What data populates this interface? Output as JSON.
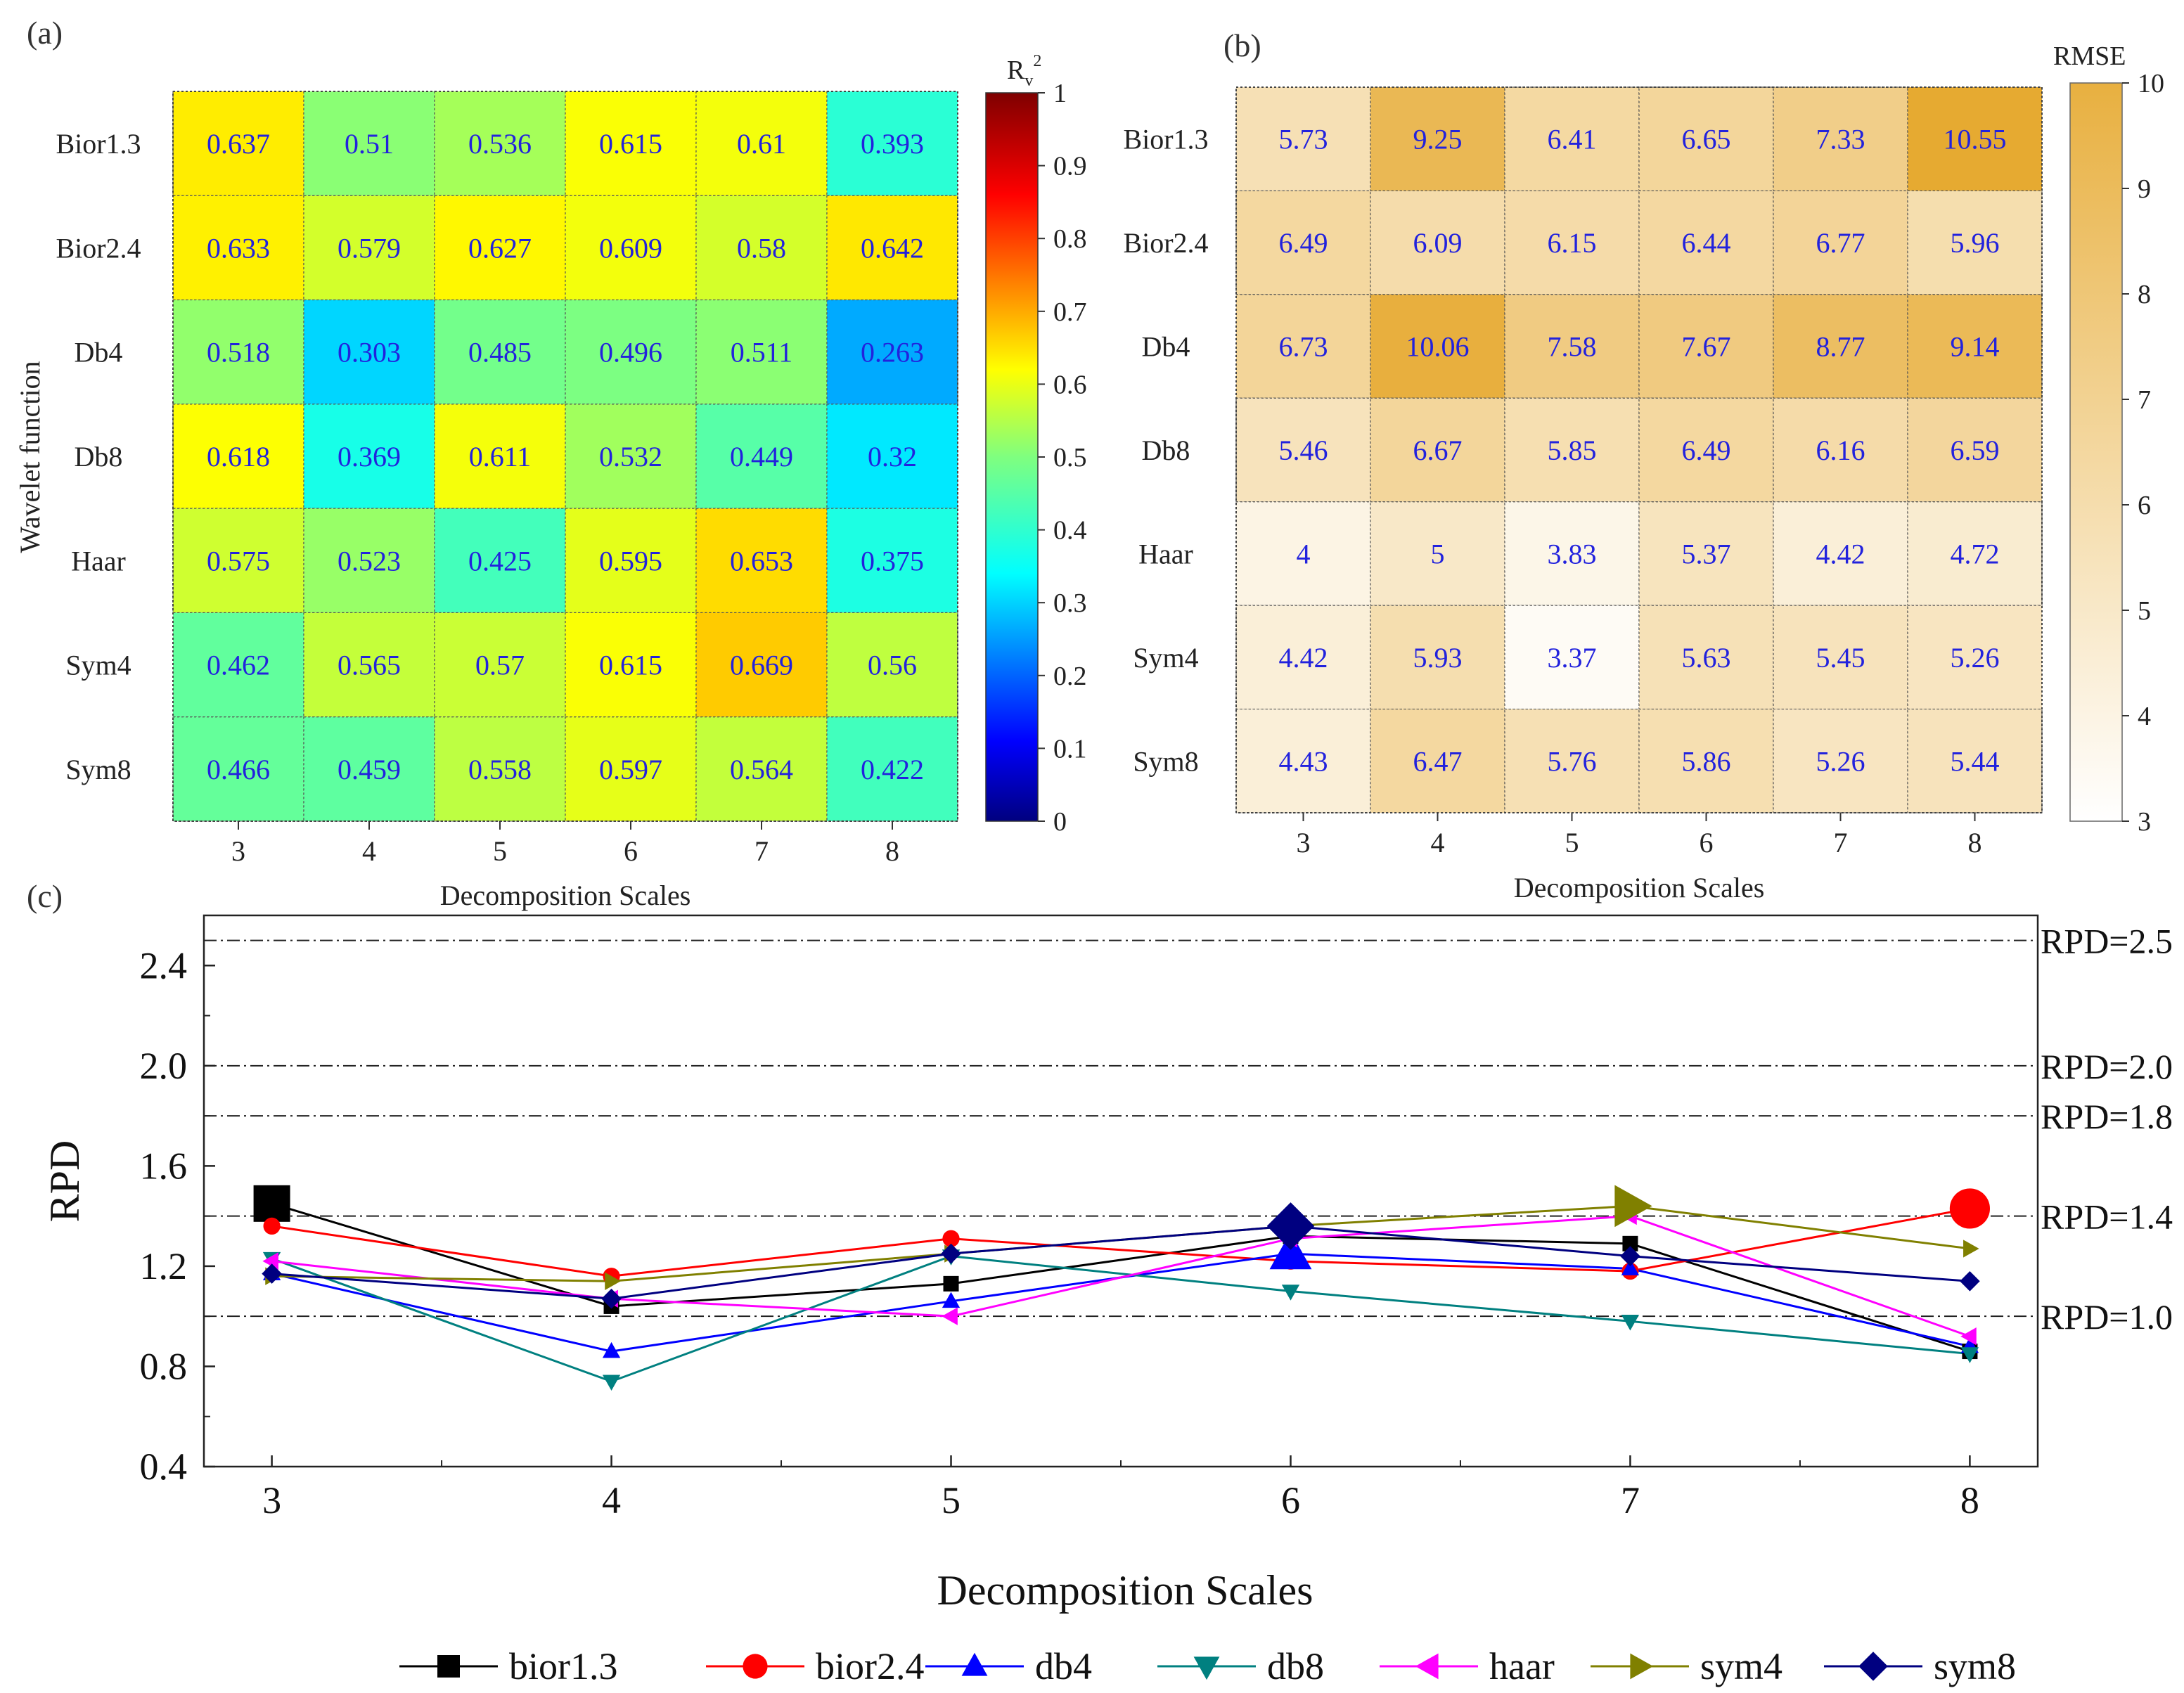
{
  "panel_labels": {
    "a": "(a)",
    "b": "(b)",
    "c": "(c)"
  },
  "chart_data": [
    {
      "type": "heatmap",
      "panel": "(a)",
      "xlabel": "Decomposition Scales",
      "ylabel": "Wavelet function",
      "x_categories": [
        "3",
        "4",
        "5",
        "6",
        "7",
        "8"
      ],
      "y_categories": [
        "Bior1.3",
        "Bior2.4",
        "Db4",
        "Db8",
        "Haar",
        "Sym4",
        "Sym8"
      ],
      "values": [
        [
          "0.637",
          "0.51",
          "0.536",
          "0.615",
          "0.61",
          "0.393"
        ],
        [
          "0.633",
          "0.579",
          "0.627",
          "0.609",
          "0.58",
          "0.642"
        ],
        [
          "0.518",
          "0.303",
          "0.485",
          "0.496",
          "0.511",
          "0.263"
        ],
        [
          "0.618",
          "0.369",
          "0.611",
          "0.532",
          "0.449",
          "0.32"
        ],
        [
          "0.575",
          "0.523",
          "0.425",
          "0.595",
          "0.653",
          "0.375"
        ],
        [
          "0.462",
          "0.565",
          "0.57",
          "0.615",
          "0.669",
          "0.56"
        ],
        [
          "0.466",
          "0.459",
          "0.558",
          "0.597",
          "0.564",
          "0.422"
        ]
      ],
      "colorbar": {
        "title_main": "R",
        "title_sub": "v",
        "title_sup": "2",
        "range": [
          0,
          1
        ],
        "ticks": [
          "0",
          "0.1",
          "0.2",
          "0.3",
          "0.4",
          "0.5",
          "0.6",
          "0.7",
          "0.8",
          "0.9",
          "1"
        ],
        "colormap": "jet"
      }
    },
    {
      "type": "heatmap",
      "panel": "(b)",
      "xlabel": "Decomposition Scales",
      "x_categories": [
        "3",
        "4",
        "5",
        "6",
        "7",
        "8"
      ],
      "y_categories": [
        "Bior1.3",
        "Bior2.4",
        "Db4",
        "Db8",
        "Haar",
        "Sym4",
        "Sym8"
      ],
      "values": [
        [
          "5.73",
          "9.25",
          "6.41",
          "6.65",
          "7.33",
          "10.55"
        ],
        [
          "6.49",
          "6.09",
          "6.15",
          "6.44",
          "6.77",
          "5.96"
        ],
        [
          "6.73",
          "10.06",
          "7.58",
          "7.67",
          "8.77",
          "9.14"
        ],
        [
          "5.46",
          "6.67",
          "5.85",
          "6.49",
          "6.16",
          "6.59"
        ],
        [
          "4",
          "5",
          "3.83",
          "5.37",
          "4.42",
          "4.72"
        ],
        [
          "4.42",
          "5.93",
          "3.37",
          "5.63",
          "5.45",
          "5.26"
        ],
        [
          "4.43",
          "6.47",
          "5.76",
          "5.86",
          "5.26",
          "5.44"
        ]
      ],
      "colorbar": {
        "title": "RMSE",
        "range": [
          3,
          10
        ],
        "ticks": [
          "3",
          "4",
          "5",
          "6",
          "7",
          "8",
          "9",
          "10"
        ],
        "colormap": "white-to-gold",
        "low_color": "#ffffff",
        "high_color": "#e8b040"
      }
    },
    {
      "type": "line",
      "panel": "(c)",
      "xlabel": "Decomposition Scales",
      "ylabel": "RPD",
      "x": [
        3,
        4,
        5,
        6,
        7,
        8
      ],
      "xticks": [
        "3",
        "4",
        "5",
        "6",
        "7",
        "8"
      ],
      "xlim": [
        2.8,
        8.2
      ],
      "ylim": [
        0.4,
        2.6
      ],
      "yticks": [
        "0.4",
        "0.8",
        "1.2",
        "1.6",
        "2.0",
        "2.4"
      ],
      "ytick_values": [
        0.4,
        0.8,
        1.2,
        1.6,
        2.0,
        2.4
      ],
      "reference_lines": [
        {
          "y": 2.5,
          "label": "RPD=2.5"
        },
        {
          "y": 2.0,
          "label": "RPD=2.0"
        },
        {
          "y": 1.8,
          "label": "RPD=1.8"
        },
        {
          "y": 1.4,
          "label": "RPD=1.4"
        },
        {
          "y": 1.0,
          "label": "RPD=1.0"
        }
      ],
      "legend_position": "bottom",
      "series": [
        {
          "name": "bior1.3",
          "color": "#000000",
          "marker": "square",
          "values": [
            1.45,
            1.04,
            1.13,
            1.32,
            1.29,
            0.86
          ],
          "highlight_index": 0
        },
        {
          "name": "bior2.4",
          "color": "#ff0000",
          "marker": "circle",
          "values": [
            1.36,
            1.16,
            1.31,
            1.22,
            1.18,
            1.43
          ],
          "highlight_index": 5
        },
        {
          "name": "db4",
          "color": "#0000ff",
          "marker": "triangle-up",
          "values": [
            1.17,
            0.86,
            1.06,
            1.25,
            1.19,
            0.88
          ],
          "highlight_index": 3
        },
        {
          "name": "db8",
          "color": "#008080",
          "marker": "triangle-down",
          "values": [
            1.23,
            0.74,
            1.24,
            1.1,
            0.98,
            0.85
          ]
        },
        {
          "name": "haar",
          "color": "#ff00ff",
          "marker": "triangle-left",
          "values": [
            1.22,
            1.07,
            1.0,
            1.31,
            1.4,
            0.92
          ]
        },
        {
          "name": "sym4",
          "color": "#808000",
          "marker": "triangle-right",
          "values": [
            1.16,
            1.14,
            1.25,
            1.36,
            1.44,
            1.27
          ],
          "highlight_index": 4
        },
        {
          "name": "sym8",
          "color": "#000080",
          "marker": "diamond",
          "values": [
            1.17,
            1.07,
            1.25,
            1.36,
            1.24,
            1.14
          ],
          "highlight_index": 3
        }
      ]
    }
  ]
}
